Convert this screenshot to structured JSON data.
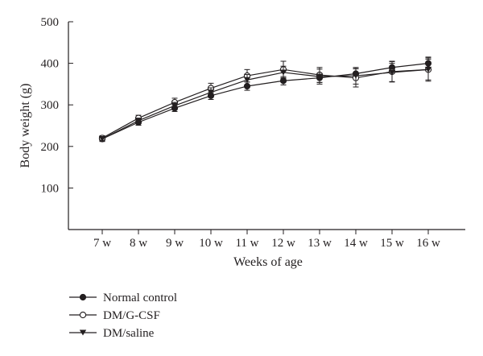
{
  "chart_data": {
    "type": "line",
    "xlabel": "Weeks of age",
    "ylabel": "Body weight (g)",
    "categories": [
      "7 w",
      "8 w",
      "9 w",
      "10 w",
      "11 w",
      "12 w",
      "13 w",
      "14 w",
      "15 w",
      "16 w"
    ],
    "y_ticks": [
      "100",
      "200",
      "300",
      "400",
      "500"
    ],
    "y_tick_values": [
      100,
      200,
      300,
      400,
      500
    ],
    "ylim": [
      0,
      500
    ],
    "grid": false,
    "legend_position": "bottom-left",
    "series": [
      {
        "name": "Normal control",
        "marker": "filled-circle",
        "values": [
          218,
          258,
          292,
          322,
          345,
          358,
          365,
          375,
          390,
          400
        ],
        "error": [
          6,
          7,
          8,
          9,
          10,
          10,
          11,
          12,
          14,
          15
        ]
      },
      {
        "name": "DM/G-CSF",
        "marker": "open-circle",
        "values": [
          220,
          268,
          306,
          340,
          370,
          385,
          372,
          365,
          380,
          385
        ],
        "error": [
          6,
          7,
          10,
          12,
          15,
          20,
          18,
          22,
          25,
          28
        ]
      },
      {
        "name": "DM/saline",
        "marker": "filled-triangle-down",
        "values": [
          218,
          262,
          298,
          330,
          360,
          378,
          368,
          370,
          378,
          385
        ],
        "error": [
          6,
          6,
          8,
          11,
          13,
          15,
          18,
          20,
          22,
          25
        ]
      }
    ],
    "colors": {
      "line": "#231f20",
      "marker_fill": "#231f20",
      "open_fill": "#ffffff"
    }
  }
}
